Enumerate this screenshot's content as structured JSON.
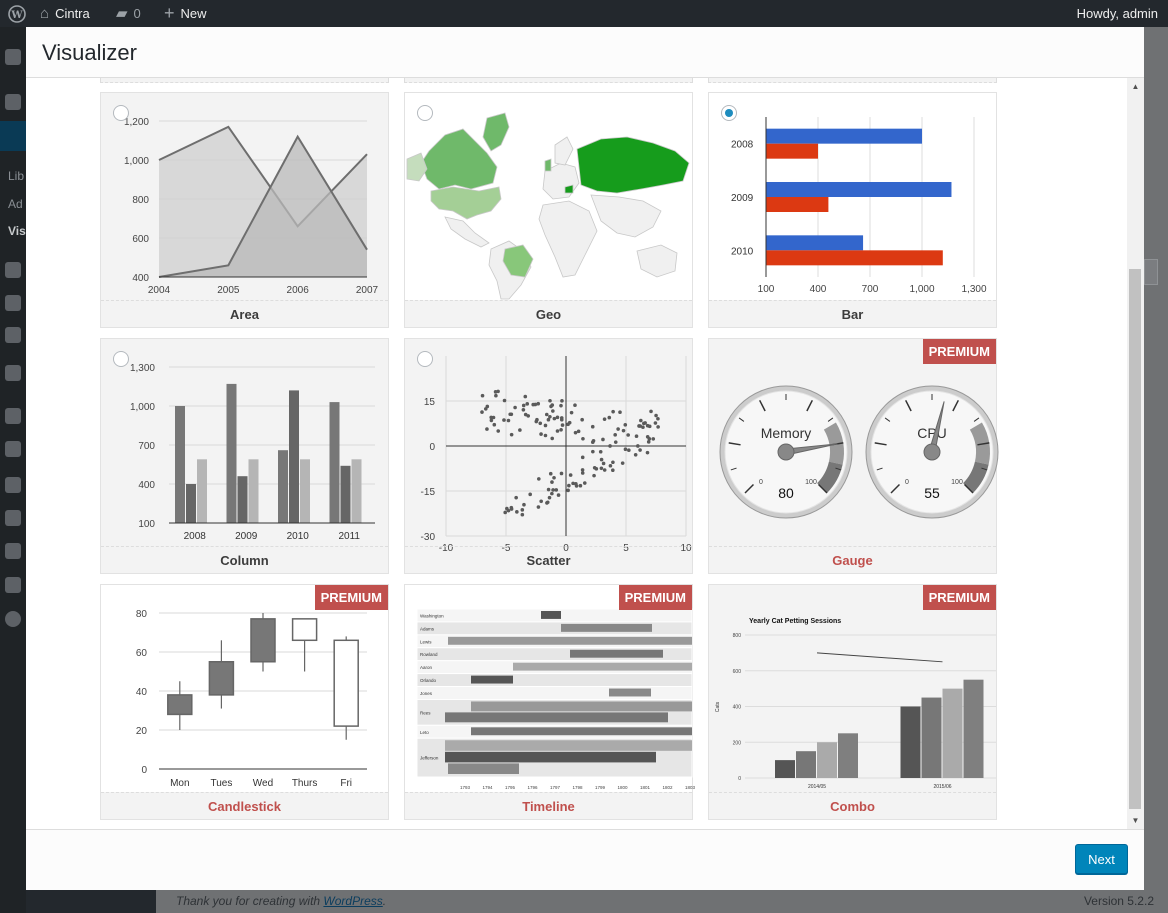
{
  "adminbar": {
    "site_name": "Cintra",
    "comments_count": "0",
    "new_label": "New",
    "greeting": "Howdy, admin"
  },
  "sidemenu": {
    "sub_items": [
      "Lib",
      "Ad",
      "Vis"
    ]
  },
  "modal": {
    "title": "Visualizer",
    "next_label": "Next"
  },
  "badge_text": "PREMIUM",
  "charts": [
    {
      "label": "Area",
      "premium": false,
      "selected": false,
      "chart_data": {
        "type": "area",
        "categories": [
          "2004",
          "2005",
          "2006",
          "2007"
        ],
        "series": [
          {
            "values": [
              1000,
              1170,
              660,
              1030
            ]
          },
          {
            "values": [
              400,
              460,
              1120,
              540
            ]
          }
        ],
        "yticks": [
          "400",
          "600",
          "800",
          "1,000",
          "1,200"
        ],
        "ylim": [
          400,
          1200
        ]
      }
    },
    {
      "label": "Geo",
      "premium": false,
      "selected": false,
      "chart_data": {
        "type": "geo"
      }
    },
    {
      "label": "Bar",
      "premium": false,
      "selected": true,
      "chart_data": {
        "type": "bar",
        "categories": [
          "2008",
          "2009",
          "2010"
        ],
        "series": [
          {
            "values": [
              1000,
              1170,
              660
            ],
            "color": "#3366cc"
          },
          {
            "values": [
              400,
              460,
              1120
            ],
            "color": "#dc3912"
          }
        ],
        "xticks": [
          "100",
          "400",
          "700",
          "1,000",
          "1,300"
        ],
        "xlim": [
          100,
          1300
        ]
      }
    },
    {
      "label": "Column",
      "premium": false,
      "selected": false,
      "chart_data": {
        "type": "bar",
        "categories": [
          "2008",
          "2009",
          "2010",
          "2011"
        ],
        "series": [
          {
            "values": [
              1000,
              1170,
              660,
              1030
            ]
          },
          {
            "values": [
              400,
              460,
              1120,
              540
            ]
          },
          {
            "values": [
              590,
              590,
              590,
              590
            ]
          }
        ],
        "yticks": [
          "100",
          "400",
          "700",
          "1,000",
          "1,300"
        ],
        "ylim": [
          100,
          1300
        ]
      }
    },
    {
      "label": "Scatter",
      "premium": false,
      "selected": false,
      "chart_data": {
        "type": "scatter",
        "xticks": [
          "-10",
          "-5",
          "0",
          "5",
          "10"
        ],
        "yticks": [
          "-30",
          "-15",
          "0",
          "15"
        ],
        "xlim": [
          -10,
          10
        ],
        "ylim": [
          -30,
          30
        ]
      }
    },
    {
      "label": "Gauge",
      "premium": true,
      "selected": false,
      "chart_data": {
        "type": "gauge",
        "gauges": [
          {
            "name": "Memory",
            "value": 80,
            "min": "0",
            "max": "100"
          },
          {
            "name": "CPU",
            "value": 55,
            "min": "0",
            "max": "100"
          }
        ]
      }
    },
    {
      "label": "Candlestick",
      "premium": true,
      "selected": false,
      "chart_data": {
        "type": "candlestick",
        "categories": [
          "Mon",
          "Tues",
          "Wed",
          "Thurs",
          "Fri"
        ],
        "candles": [
          {
            "low": 20,
            "open": 28,
            "close": 38,
            "high": 45
          },
          {
            "low": 31,
            "open": 38,
            "close": 55,
            "high": 66
          },
          {
            "low": 50,
            "open": 55,
            "close": 77,
            "high": 80
          },
          {
            "low": 50,
            "open": 77,
            "close": 66,
            "high": 77
          },
          {
            "low": 15,
            "open": 66,
            "close": 22,
            "high": 68
          }
        ],
        "yticks": [
          "0",
          "20",
          "40",
          "60",
          "80"
        ],
        "ylim": [
          0,
          80
        ]
      }
    },
    {
      "label": "Timeline",
      "premium": true,
      "selected": false,
      "chart_data": {
        "type": "timeline",
        "rows": [
          "Washington",
          "Adams",
          "Lewis",
          "Rowland",
          "Aaron",
          "Orlando",
          "Jones",
          "Rees",
          "Leto",
          "Jefferson"
        ],
        "xticks": [
          "1793",
          "1794",
          "1795",
          "1796",
          "1797",
          "1798",
          "1799",
          "1800",
          "1801",
          "1802",
          "1803"
        ]
      }
    },
    {
      "label": "Combo",
      "premium": true,
      "selected": false,
      "chart_data": {
        "type": "bar",
        "title": "Yearly Cat Petting Sessions",
        "ylabel": "Cats",
        "categories": [
          "2014/05",
          "2015/06"
        ],
        "series": [
          {
            "values": [
              100,
              400
            ]
          },
          {
            "values": [
              150,
              450
            ]
          },
          {
            "values": [
              200,
              500
            ]
          },
          {
            "values": [
              250,
              550
            ]
          }
        ],
        "line": [
          700,
          650
        ],
        "yticks": [
          "0",
          "200",
          "400",
          "600",
          "800"
        ],
        "ylim": [
          0,
          800
        ]
      }
    }
  ],
  "footer": {
    "thanks_prefix": "Thank you for creating with ",
    "thanks_link": "WordPress",
    "thanks_suffix": ".",
    "version": "Version 5.2.2"
  }
}
